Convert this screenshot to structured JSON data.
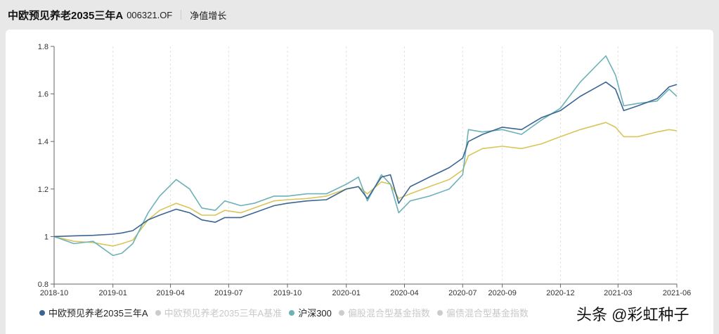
{
  "header": {
    "title": "中欧预见养老2035三年A",
    "code": "006321.OF",
    "tab": "净值增长"
  },
  "watermark": "头条 @彩虹种子",
  "chart_data": {
    "type": "line",
    "xlabel": "",
    "ylabel": "",
    "ylim": [
      0.8,
      1.8
    ],
    "xlim": [
      "2018-10-01",
      "2021-06-01"
    ],
    "yticks": [
      "0.8",
      "1",
      "1.2",
      "1.4",
      "1.6",
      "1.8"
    ],
    "xticks": [
      "2018-10",
      "2019-01",
      "2019-04",
      "2019-07",
      "2019-10",
      "2020-01",
      "2020-04",
      "2020-07",
      "2020-09",
      "2020-12",
      "2021-03",
      "2021-06"
    ],
    "grid": "vertical-dashed",
    "legend_placement": "bottom",
    "legend": [
      {
        "name": "中欧预见养老2035三年A",
        "color": "#3b6694",
        "active": true
      },
      {
        "name": "中欧预见养老2035三年A基准",
        "color": "#d9c55a",
        "active": true,
        "legend_shown_inactive": true
      },
      {
        "name": "沪深300",
        "color": "#6cb2b8",
        "active": true
      },
      {
        "name": "偏股混合型基金指数",
        "color": "#cccccc",
        "active": false
      },
      {
        "name": "偏债混合型基金指数",
        "color": "#cccccc",
        "active": false
      }
    ],
    "x": [
      "2018-10-01",
      "2018-11-01",
      "2018-12-01",
      "2019-01-01",
      "2019-01-15",
      "2019-02-01",
      "2019-02-25",
      "2019-03-15",
      "2019-04-10",
      "2019-05-01",
      "2019-05-20",
      "2019-06-10",
      "2019-06-25",
      "2019-07-20",
      "2019-08-10",
      "2019-09-10",
      "2019-10-01",
      "2019-11-01",
      "2019-12-01",
      "2020-01-01",
      "2020-01-20",
      "2020-02-03",
      "2020-02-25",
      "2020-03-10",
      "2020-03-23",
      "2020-04-10",
      "2020-05-10",
      "2020-06-10",
      "2020-07-01",
      "2020-07-10",
      "2020-08-01",
      "2020-09-01",
      "2020-10-01",
      "2020-11-01",
      "2020-12-01",
      "2021-01-01",
      "2021-02-10",
      "2021-02-25",
      "2021-03-10",
      "2021-04-01",
      "2021-05-01",
      "2021-05-20",
      "2021-06-01"
    ],
    "series": [
      {
        "name": "中欧预见养老2035三年A",
        "color": "#3b6694",
        "values": [
          1.0,
          1.003,
          1.005,
          1.01,
          1.015,
          1.025,
          1.07,
          1.09,
          1.115,
          1.1,
          1.07,
          1.06,
          1.08,
          1.08,
          1.1,
          1.13,
          1.14,
          1.15,
          1.155,
          1.2,
          1.21,
          1.16,
          1.25,
          1.26,
          1.14,
          1.21,
          1.25,
          1.29,
          1.33,
          1.4,
          1.43,
          1.46,
          1.45,
          1.5,
          1.53,
          1.59,
          1.65,
          1.62,
          1.53,
          1.55,
          1.58,
          1.63,
          1.64
        ]
      },
      {
        "name": "中欧预见养老2035三年A基准",
        "color": "#d9c55a",
        "values": [
          1.0,
          0.98,
          0.975,
          0.96,
          0.97,
          0.985,
          1.07,
          1.11,
          1.14,
          1.12,
          1.09,
          1.09,
          1.11,
          1.1,
          1.12,
          1.15,
          1.155,
          1.16,
          1.17,
          1.2,
          1.21,
          1.18,
          1.23,
          1.22,
          1.16,
          1.18,
          1.21,
          1.24,
          1.28,
          1.34,
          1.37,
          1.38,
          1.37,
          1.39,
          1.42,
          1.45,
          1.48,
          1.46,
          1.42,
          1.42,
          1.44,
          1.45,
          1.445
        ]
      },
      {
        "name": "沪深300",
        "color": "#6cb2b8",
        "values": [
          1.0,
          0.97,
          0.98,
          0.92,
          0.93,
          0.97,
          1.1,
          1.17,
          1.24,
          1.2,
          1.12,
          1.11,
          1.15,
          1.13,
          1.14,
          1.17,
          1.17,
          1.18,
          1.18,
          1.22,
          1.25,
          1.15,
          1.26,
          1.22,
          1.1,
          1.15,
          1.17,
          1.2,
          1.26,
          1.45,
          1.44,
          1.45,
          1.43,
          1.49,
          1.54,
          1.65,
          1.76,
          1.68,
          1.55,
          1.56,
          1.57,
          1.62,
          1.59
        ]
      }
    ]
  }
}
